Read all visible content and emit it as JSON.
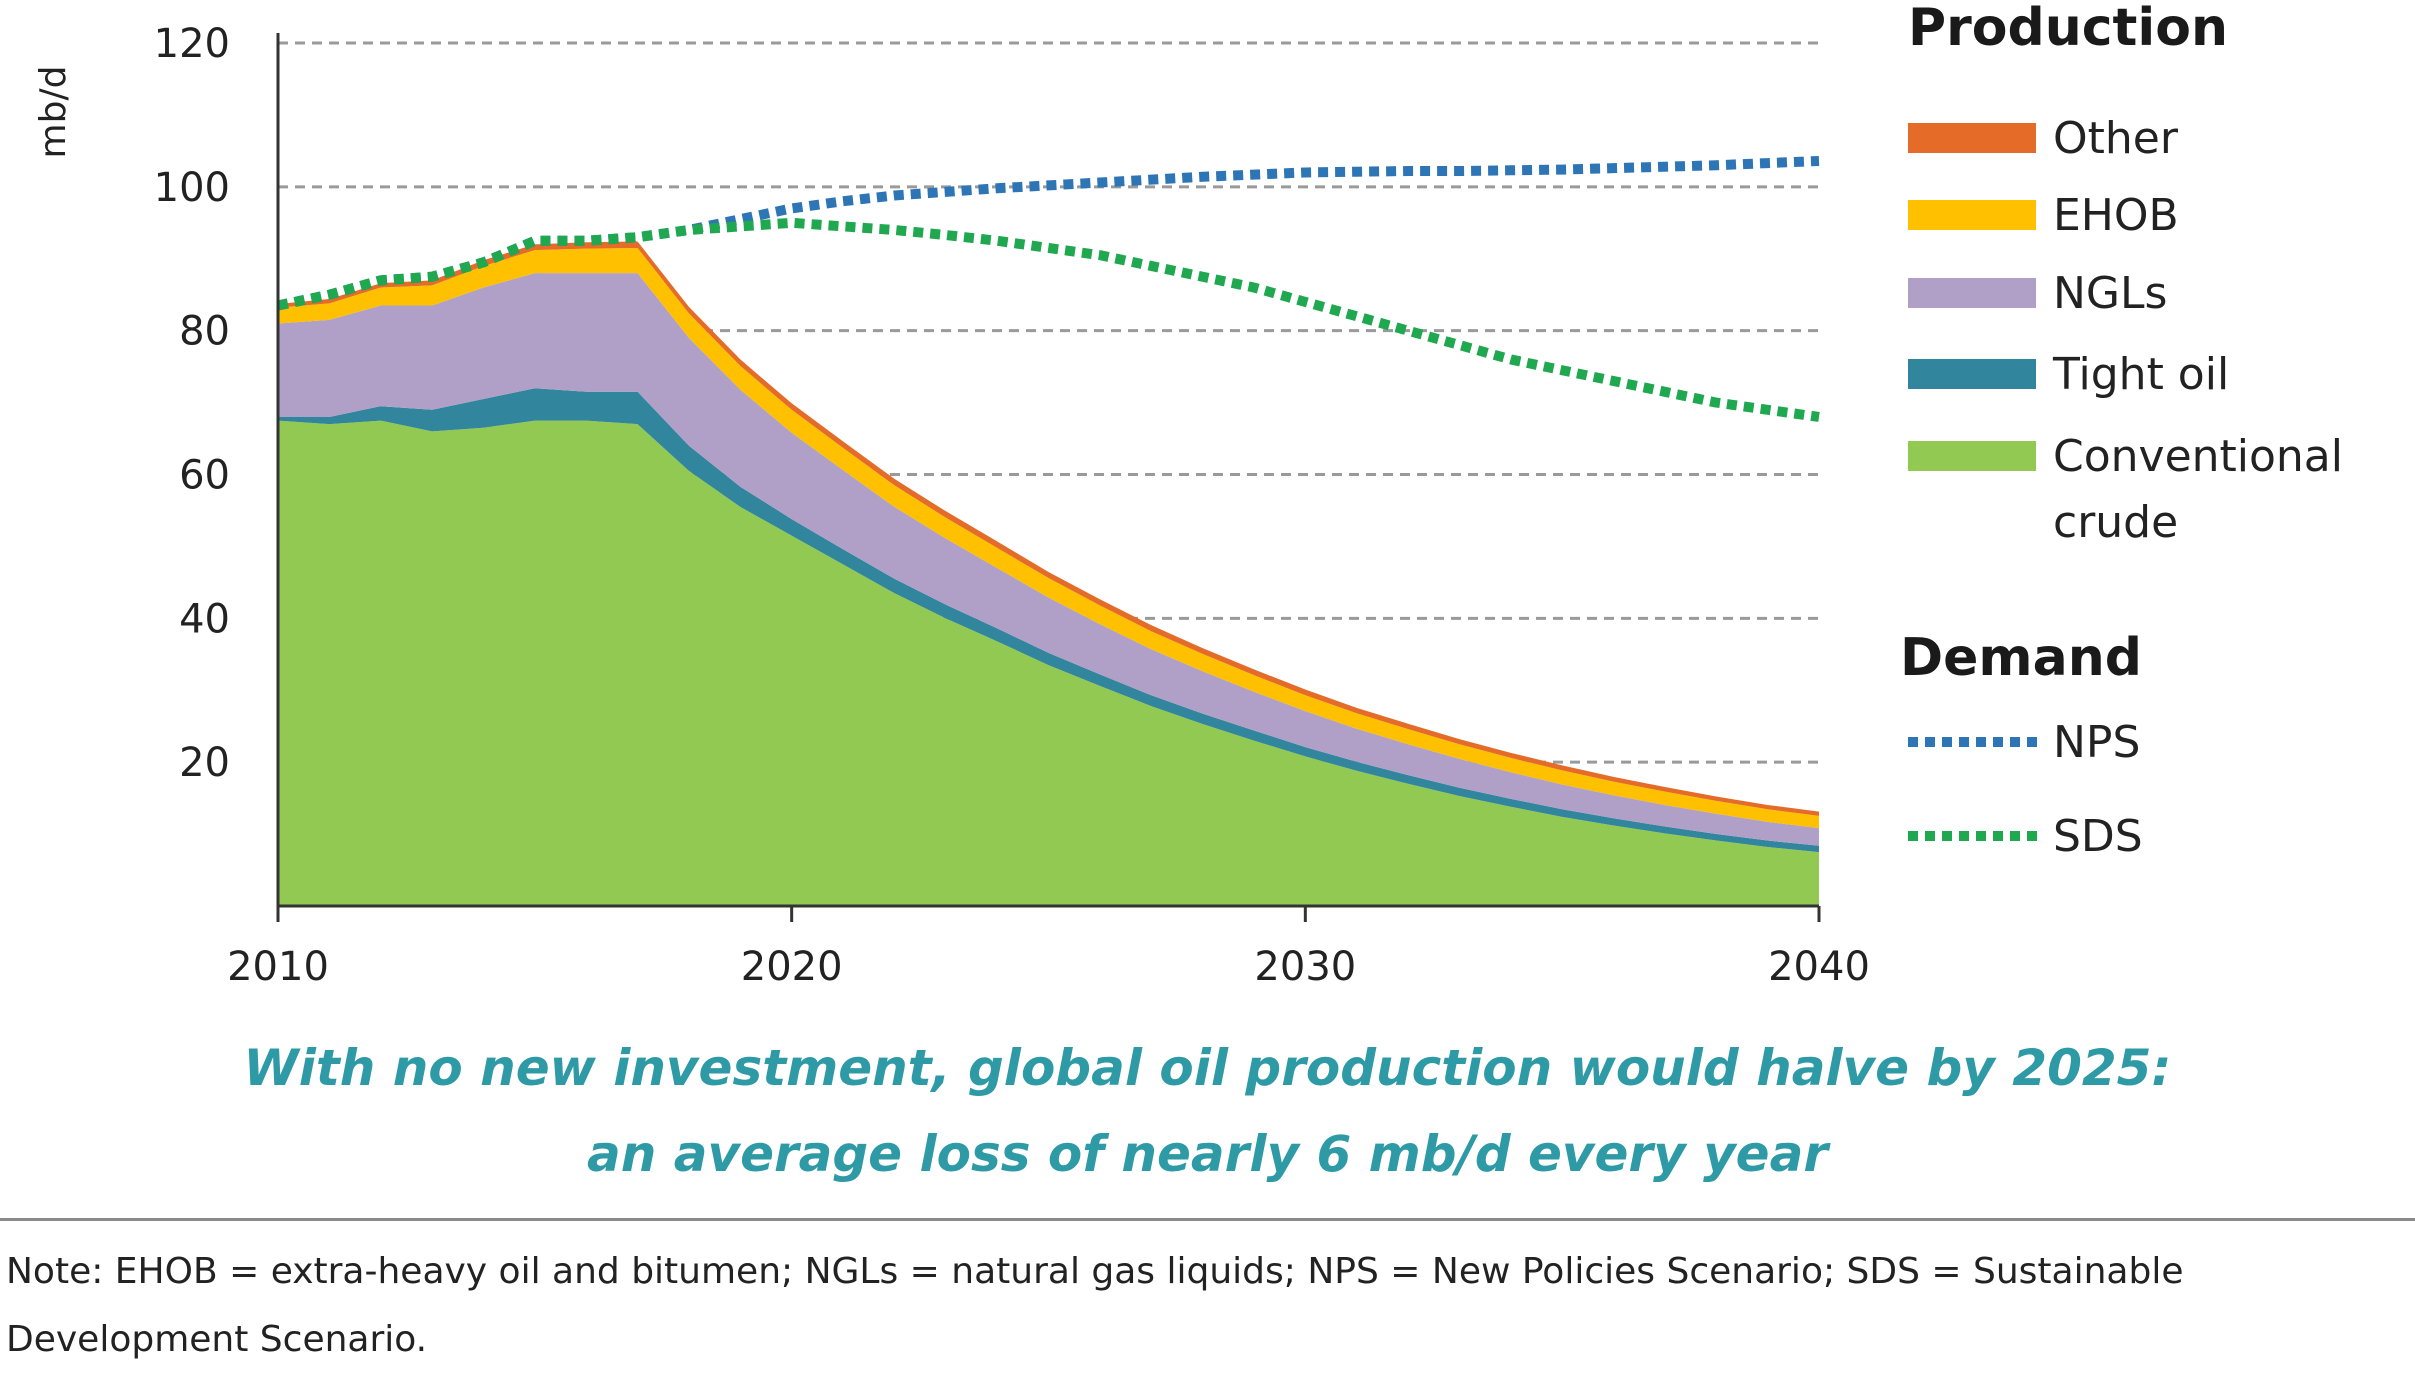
{
  "chart_data": {
    "type": "area",
    "title": "",
    "ylabel": "mb/d",
    "xlabel": "",
    "xlim": [
      2010,
      2040
    ],
    "ylim": [
      0,
      120
    ],
    "xticks": [
      2010,
      2020,
      2030,
      2040
    ],
    "yticks": [
      20,
      40,
      60,
      80,
      100,
      120
    ],
    "grid": "horizontal dashed",
    "x": [
      2010,
      2011,
      2012,
      2013,
      2014,
      2015,
      2016,
      2017,
      2018,
      2019,
      2020,
      2021,
      2022,
      2023,
      2024,
      2025,
      2026,
      2027,
      2028,
      2029,
      2030,
      2031,
      2032,
      2033,
      2034,
      2035,
      2036,
      2037,
      2038,
      2039,
      2040
    ],
    "production_series": [
      {
        "name": "Conventional crude",
        "color": "#92c953",
        "values": [
          67.5,
          67,
          67.5,
          66,
          66.5,
          67.5,
          67.5,
          67,
          60.5,
          55.5,
          51.5,
          47.5,
          43.5,
          40,
          36.8,
          33.5,
          30.6,
          27.8,
          25.3,
          23,
          20.8,
          18.8,
          17,
          15.3,
          13.8,
          12.4,
          11.2,
          10.1,
          9.1,
          8.2,
          7.5
        ]
      },
      {
        "name": "Tight oil",
        "color": "#31859c",
        "values": [
          0.5,
          1,
          2,
          3,
          4,
          4.5,
          4,
          4.5,
          3.5,
          2.8,
          2.3,
          2.1,
          2,
          1.9,
          1.8,
          1.7,
          1.6,
          1.5,
          1.45,
          1.4,
          1.3,
          1.25,
          1.2,
          1.15,
          1.1,
          1.05,
          1,
          0.95,
          0.92,
          0.9,
          0.88
        ]
      },
      {
        "name": "NGLs",
        "color": "#b0a0c8",
        "values": [
          13,
          13.5,
          14,
          14.5,
          15.5,
          16,
          16.5,
          16.5,
          15,
          13.5,
          12,
          11,
          10,
          9.2,
          8.4,
          7.7,
          7,
          6.4,
          5.9,
          5.4,
          5,
          4.6,
          4.3,
          4,
          3.7,
          3.45,
          3.2,
          3,
          2.8,
          2.6,
          2.45
        ]
      },
      {
        "name": "EHOB",
        "color": "#ffc000",
        "values": [
          2.2,
          2.3,
          2.5,
          2.8,
          3,
          3.2,
          3.4,
          3.5,
          3.4,
          3.3,
          3.2,
          3.1,
          3,
          2.9,
          2.8,
          2.7,
          2.6,
          2.5,
          2.4,
          2.3,
          2.2,
          2.15,
          2.1,
          2.05,
          2,
          1.95,
          1.9,
          1.85,
          1.8,
          1.75,
          1.7
        ]
      },
      {
        "name": "Other",
        "color": "#e46c28",
        "values": [
          0.5,
          0.6,
          0.6,
          0.7,
          0.8,
          0.8,
          0.9,
          0.9,
          0.9,
          0.9,
          0.9,
          0.9,
          0.9,
          0.9,
          0.9,
          0.85,
          0.85,
          0.85,
          0.8,
          0.8,
          0.8,
          0.75,
          0.75,
          0.7,
          0.7,
          0.7,
          0.65,
          0.65,
          0.6,
          0.6,
          0.6
        ]
      }
    ],
    "demand_series": [
      {
        "name": "NPS",
        "color": "#2e75b6",
        "x": [
          2010,
          2011,
          2012,
          2013,
          2014,
          2015,
          2016,
          2017,
          2018,
          2019,
          2020,
          2021,
          2022,
          2023,
          2024,
          2025,
          2026,
          2027,
          2028,
          2029,
          2030,
          2031,
          2032,
          2033,
          2034,
          2035,
          2036,
          2037,
          2038,
          2039,
          2040
        ],
        "values": [
          83.5,
          85,
          87,
          87.5,
          89.5,
          92.5,
          92.5,
          93,
          94,
          95.5,
          97,
          98,
          98.8,
          99.3,
          99.8,
          100.2,
          100.6,
          101,
          101.4,
          101.7,
          102,
          102.1,
          102.2,
          102.2,
          102.3,
          102.4,
          102.6,
          102.8,
          103,
          103.3,
          103.6
        ]
      },
      {
        "name": "SDS",
        "color": "#1fa84f",
        "x": [
          2010,
          2011,
          2012,
          2013,
          2014,
          2015,
          2016,
          2017,
          2018,
          2019,
          2020,
          2021,
          2022,
          2023,
          2024,
          2025,
          2026,
          2027,
          2028,
          2029,
          2030,
          2031,
          2032,
          2033,
          2034,
          2035,
          2036,
          2037,
          2038,
          2039,
          2040
        ],
        "values": [
          83.5,
          85,
          87,
          87.5,
          89.5,
          92.5,
          92.5,
          93,
          94,
          94.5,
          95,
          94.5,
          94,
          93.3,
          92.5,
          91.5,
          90.5,
          89,
          87.5,
          86,
          84,
          82,
          80,
          78,
          76,
          74.5,
          73,
          71.5,
          70,
          69,
          68
        ]
      }
    ],
    "legend": {
      "position": "right",
      "production_title": "Production",
      "production_items": [
        {
          "lines": [
            "Other"
          ],
          "color": "#e46c28"
        },
        {
          "lines": [
            "EHOB"
          ],
          "color": "#ffc000"
        },
        {
          "lines": [
            "NGLs"
          ],
          "color": "#b0a0c8"
        },
        {
          "lines": [
            "Tight oil"
          ],
          "color": "#31859c"
        },
        {
          "lines": [
            "Conventional",
            "crude"
          ],
          "color": "#92c953"
        }
      ],
      "demand_title": "Demand",
      "demand_items": [
        {
          "lines": [
            "NPS"
          ],
          "color": "#2e75b6"
        },
        {
          "lines": [
            "SDS"
          ],
          "color": "#1fa84f"
        }
      ]
    }
  },
  "caption": {
    "line1": "With no new investment, global oil production would halve by 2025:",
    "line2": "an average loss of nearly 6 mb/d every year"
  },
  "note": "Note: EHOB = extra-heavy oil and bitumen; NGLs = natural gas liquids; NPS = New Policies Scenario; SDS = Sustainable Development Scenario."
}
